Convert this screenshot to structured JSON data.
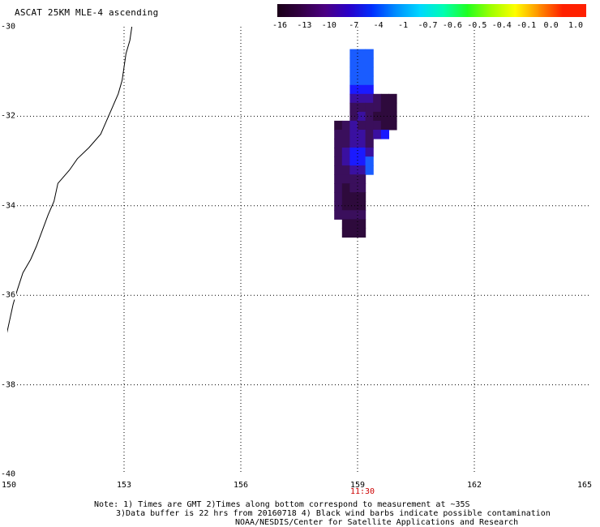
{
  "map": {
    "title": "ASCAT 25KM MLE-4 ascending",
    "lat_range": [
      -40,
      -30
    ],
    "lon_range": [
      150,
      165
    ],
    "lat_labels": [
      "-30",
      "-32",
      "-34",
      "-36",
      "-38",
      "-40"
    ],
    "lat_values": [
      -30,
      -32,
      -34,
      -36,
      -38,
      -40
    ],
    "lon_labels": [
      "150",
      "153",
      "156",
      "159",
      "162",
      "165"
    ],
    "lon_values": [
      150,
      153,
      156,
      159,
      162,
      165
    ],
    "time_label": "11:30",
    "time_lon": 159
  },
  "colorbar": {
    "tick_labels": [
      "-16",
      "-13",
      "-10",
      "-7",
      "-4",
      "-1",
      "-0.7",
      "-0.6",
      "-0.5",
      "-0.4",
      "-0.1",
      "0.0",
      "1.0"
    ],
    "colors": [
      "#1a0018",
      "#330044",
      "#4b0082",
      "#2a00c8",
      "#0030ff",
      "#0090ff",
      "#00d8ff",
      "#00ffb0",
      "#20ff20",
      "#a0ff00",
      "#ffff00",
      "#ff9000",
      "#ff2000"
    ]
  },
  "notes": {
    "line1": "Note: 1) Times are GMT 2)Times along bottom correspond to measurement at ~35S",
    "line2": "3)Data buffer is 22 hrs from 20160718 4) Black wind barbs indicate possible contamination",
    "credit": "NOAA/NESDIS/Center for Satellite Applications and Research"
  },
  "swath": {
    "colors": {
      "dark": "#2e0a3c",
      "violet": "#3a0f5c",
      "indigo": "#3a10a0",
      "blue": "#1a1aff",
      "lightblue": "#1a5cff"
    },
    "cells": [
      {
        "lat": -30.6,
        "lon": 158.9,
        "c": "lightblue"
      },
      {
        "lat": -30.6,
        "lon": 159.1,
        "c": "lightblue"
      },
      {
        "lat": -30.6,
        "lon": 159.3,
        "c": "lightblue"
      },
      {
        "lat": -30.8,
        "lon": 158.9,
        "c": "lightblue"
      },
      {
        "lat": -30.8,
        "lon": 159.1,
        "c": "lightblue"
      },
      {
        "lat": -30.8,
        "lon": 159.3,
        "c": "lightblue"
      },
      {
        "lat": -31.0,
        "lon": 158.9,
        "c": "lightblue"
      },
      {
        "lat": -31.0,
        "lon": 159.1,
        "c": "lightblue"
      },
      {
        "lat": -31.0,
        "lon": 159.3,
        "c": "lightblue"
      },
      {
        "lat": -31.2,
        "lon": 158.9,
        "c": "lightblue"
      },
      {
        "lat": -31.2,
        "lon": 159.1,
        "c": "lightblue"
      },
      {
        "lat": -31.2,
        "lon": 159.3,
        "c": "lightblue"
      },
      {
        "lat": -31.4,
        "lon": 158.9,
        "c": "blue"
      },
      {
        "lat": -31.4,
        "lon": 159.1,
        "c": "blue"
      },
      {
        "lat": -31.4,
        "lon": 159.3,
        "c": "blue"
      },
      {
        "lat": -31.6,
        "lon": 158.9,
        "c": "indigo"
      },
      {
        "lat": -31.6,
        "lon": 159.1,
        "c": "indigo"
      },
      {
        "lat": -31.6,
        "lon": 159.3,
        "c": "indigo"
      },
      {
        "lat": -31.6,
        "lon": 159.5,
        "c": "violet"
      },
      {
        "lat": -31.6,
        "lon": 159.7,
        "c": "dark"
      },
      {
        "lat": -31.6,
        "lon": 159.9,
        "c": "dark"
      },
      {
        "lat": -31.8,
        "lon": 158.9,
        "c": "violet"
      },
      {
        "lat": -31.8,
        "lon": 159.1,
        "c": "violet"
      },
      {
        "lat": -31.8,
        "lon": 159.3,
        "c": "violet"
      },
      {
        "lat": -31.8,
        "lon": 159.5,
        "c": "violet"
      },
      {
        "lat": -31.8,
        "lon": 159.7,
        "c": "dark"
      },
      {
        "lat": -31.8,
        "lon": 159.9,
        "c": "dark"
      },
      {
        "lat": -32.0,
        "lon": 158.9,
        "c": "violet"
      },
      {
        "lat": -32.0,
        "lon": 159.1,
        "c": "indigo"
      },
      {
        "lat": -32.0,
        "lon": 159.3,
        "c": "violet"
      },
      {
        "lat": -32.0,
        "lon": 159.5,
        "c": "dark"
      },
      {
        "lat": -32.0,
        "lon": 159.7,
        "c": "dark"
      },
      {
        "lat": -32.0,
        "lon": 159.9,
        "c": "dark"
      },
      {
        "lat": -32.2,
        "lon": 158.5,
        "c": "dark"
      },
      {
        "lat": -32.2,
        "lon": 158.7,
        "c": "violet"
      },
      {
        "lat": -32.2,
        "lon": 158.9,
        "c": "indigo"
      },
      {
        "lat": -32.2,
        "lon": 159.1,
        "c": "violet"
      },
      {
        "lat": -32.2,
        "lon": 159.3,
        "c": "violet"
      },
      {
        "lat": -32.2,
        "lon": 159.5,
        "c": "violet"
      },
      {
        "lat": -32.2,
        "lon": 159.7,
        "c": "dark"
      },
      {
        "lat": -32.2,
        "lon": 159.9,
        "c": "dark"
      },
      {
        "lat": -32.4,
        "lon": 158.5,
        "c": "violet"
      },
      {
        "lat": -32.4,
        "lon": 158.7,
        "c": "violet"
      },
      {
        "lat": -32.4,
        "lon": 158.9,
        "c": "indigo"
      },
      {
        "lat": -32.4,
        "lon": 159.1,
        "c": "indigo"
      },
      {
        "lat": -32.4,
        "lon": 159.3,
        "c": "violet"
      },
      {
        "lat": -32.4,
        "lon": 159.5,
        "c": "indigo"
      },
      {
        "lat": -32.4,
        "lon": 159.7,
        "c": "blue"
      },
      {
        "lat": -32.6,
        "lon": 158.5,
        "c": "violet"
      },
      {
        "lat": -32.6,
        "lon": 158.7,
        "c": "violet"
      },
      {
        "lat": -32.6,
        "lon": 158.9,
        "c": "indigo"
      },
      {
        "lat": -32.6,
        "lon": 159.1,
        "c": "indigo"
      },
      {
        "lat": -32.6,
        "lon": 159.3,
        "c": "violet"
      },
      {
        "lat": -32.8,
        "lon": 158.5,
        "c": "violet"
      },
      {
        "lat": -32.8,
        "lon": 158.7,
        "c": "indigo"
      },
      {
        "lat": -32.8,
        "lon": 158.9,
        "c": "blue"
      },
      {
        "lat": -32.8,
        "lon": 159.1,
        "c": "blue"
      },
      {
        "lat": -32.8,
        "lon": 159.3,
        "c": "indigo"
      },
      {
        "lat": -33.0,
        "lon": 158.5,
        "c": "violet"
      },
      {
        "lat": -33.0,
        "lon": 158.7,
        "c": "indigo"
      },
      {
        "lat": -33.0,
        "lon": 158.9,
        "c": "blue"
      },
      {
        "lat": -33.0,
        "lon": 159.1,
        "c": "blue"
      },
      {
        "lat": -33.0,
        "lon": 159.3,
        "c": "lightblue"
      },
      {
        "lat": -33.2,
        "lon": 158.5,
        "c": "violet"
      },
      {
        "lat": -33.2,
        "lon": 158.7,
        "c": "violet"
      },
      {
        "lat": -33.2,
        "lon": 158.9,
        "c": "indigo"
      },
      {
        "lat": -33.2,
        "lon": 159.1,
        "c": "indigo"
      },
      {
        "lat": -33.2,
        "lon": 159.3,
        "c": "lightblue"
      },
      {
        "lat": -33.4,
        "lon": 158.5,
        "c": "violet"
      },
      {
        "lat": -33.4,
        "lon": 158.7,
        "c": "violet"
      },
      {
        "lat": -33.4,
        "lon": 158.9,
        "c": "violet"
      },
      {
        "lat": -33.4,
        "lon": 159.1,
        "c": "violet"
      },
      {
        "lat": -33.6,
        "lon": 158.5,
        "c": "violet"
      },
      {
        "lat": -33.6,
        "lon": 158.7,
        "c": "dark"
      },
      {
        "lat": -33.6,
        "lon": 158.9,
        "c": "violet"
      },
      {
        "lat": -33.6,
        "lon": 159.1,
        "c": "violet"
      },
      {
        "lat": -33.8,
        "lon": 158.5,
        "c": "violet"
      },
      {
        "lat": -33.8,
        "lon": 158.7,
        "c": "dark"
      },
      {
        "lat": -33.8,
        "lon": 158.9,
        "c": "dark"
      },
      {
        "lat": -33.8,
        "lon": 159.1,
        "c": "dark"
      },
      {
        "lat": -34.0,
        "lon": 158.5,
        "c": "violet"
      },
      {
        "lat": -34.0,
        "lon": 158.7,
        "c": "dark"
      },
      {
        "lat": -34.0,
        "lon": 158.9,
        "c": "dark"
      },
      {
        "lat": -34.0,
        "lon": 159.1,
        "c": "dark"
      },
      {
        "lat": -34.2,
        "lon": 158.5,
        "c": "violet"
      },
      {
        "lat": -34.2,
        "lon": 158.7,
        "c": "violet"
      },
      {
        "lat": -34.2,
        "lon": 158.9,
        "c": "violet"
      },
      {
        "lat": -34.2,
        "lon": 159.1,
        "c": "violet"
      },
      {
        "lat": -34.4,
        "lon": 158.7,
        "c": "dark"
      },
      {
        "lat": -34.4,
        "lon": 158.9,
        "c": "dark"
      },
      {
        "lat": -34.4,
        "lon": 159.1,
        "c": "dark"
      },
      {
        "lat": -34.6,
        "lon": 158.7,
        "c": "dark"
      },
      {
        "lat": -34.6,
        "lon": 158.9,
        "c": "dark"
      },
      {
        "lat": -34.6,
        "lon": 159.1,
        "c": "dark"
      }
    ]
  },
  "coastline": [
    [
      153.2,
      -30.0
    ],
    [
      153.15,
      -30.3
    ],
    [
      153.05,
      -30.6
    ],
    [
      153.0,
      -30.9
    ],
    [
      152.95,
      -31.2
    ],
    [
      152.85,
      -31.5
    ],
    [
      152.7,
      -31.8
    ],
    [
      152.55,
      -32.1
    ],
    [
      152.4,
      -32.4
    ],
    [
      152.1,
      -32.7
    ],
    [
      151.8,
      -32.95
    ],
    [
      151.6,
      -33.2
    ],
    [
      151.3,
      -33.5
    ],
    [
      151.2,
      -33.9
    ],
    [
      151.05,
      -34.2
    ],
    [
      150.9,
      -34.55
    ],
    [
      150.75,
      -34.9
    ],
    [
      150.6,
      -35.2
    ],
    [
      150.4,
      -35.5
    ],
    [
      150.25,
      -35.9
    ],
    [
      150.15,
      -36.2
    ],
    [
      150.05,
      -36.6
    ],
    [
      149.95,
      -37.0
    ]
  ]
}
